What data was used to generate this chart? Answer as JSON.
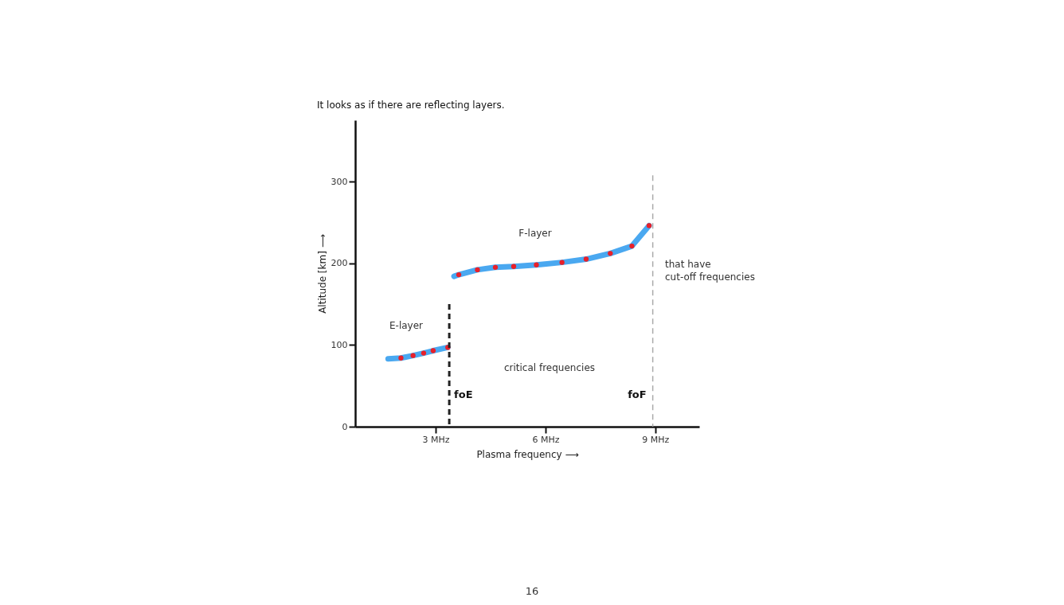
{
  "chart_data": {
    "type": "line",
    "title": "It looks as if there are reflecting layers.",
    "xlabel": "Plasma frequency ⟶",
    "ylabel": "Altitude [km] ⟶",
    "xlim": [
      0.8,
      10.2
    ],
    "xticks": [
      {
        "value": 3,
        "label": "3 MHz"
      },
      {
        "value": 6,
        "label": "6 MHz"
      },
      {
        "value": 9,
        "label": "9 MHz"
      }
    ],
    "ylim": [
      0,
      375
    ],
    "yticks": [
      0,
      100,
      200,
      300
    ],
    "series": [
      {
        "color": "#4aa8f0",
        "x": [
          1.7,
          2.05,
          2.38,
          2.67,
          2.93,
          3.33
        ],
        "values": [
          83,
          84,
          87,
          90,
          93,
          97
        ]
      },
      {
        "color": "#4aa8f0",
        "x": [
          3.5,
          3.63,
          4.14,
          4.63,
          5.13,
          5.75,
          6.45,
          7.11,
          7.77,
          8.36,
          8.83
        ],
        "values": [
          184,
          186,
          192,
          195,
          196,
          198,
          201,
          205,
          212,
          221,
          246
        ]
      },
      {
        "type": "scatter",
        "marker": "circle",
        "color": "#e8202a",
        "x": [
          2.05,
          2.38,
          2.67,
          2.93,
          3.33,
          3.63,
          4.14,
          4.63,
          5.13,
          5.75,
          6.45,
          7.11,
          7.77,
          8.36,
          8.83
        ],
        "values": [
          84,
          87,
          90,
          93,
          97,
          186,
          192,
          195,
          196,
          198,
          201,
          205,
          212,
          221,
          246
        ]
      }
    ],
    "ref_lines": [
      {
        "axis": "x",
        "value": 3.37,
        "label": "foE",
        "color": "#222222",
        "line_style": "dashed"
      },
      {
        "axis": "x",
        "value": 8.93,
        "label": "foF",
        "color": "#aaaaaa",
        "line_style": "dashed"
      }
    ],
    "annotations": [
      "E-layer",
      "F-layer",
      "critical frequencies",
      "that have\ncut-off frequencies",
      "16"
    ],
    "grid": false
  }
}
